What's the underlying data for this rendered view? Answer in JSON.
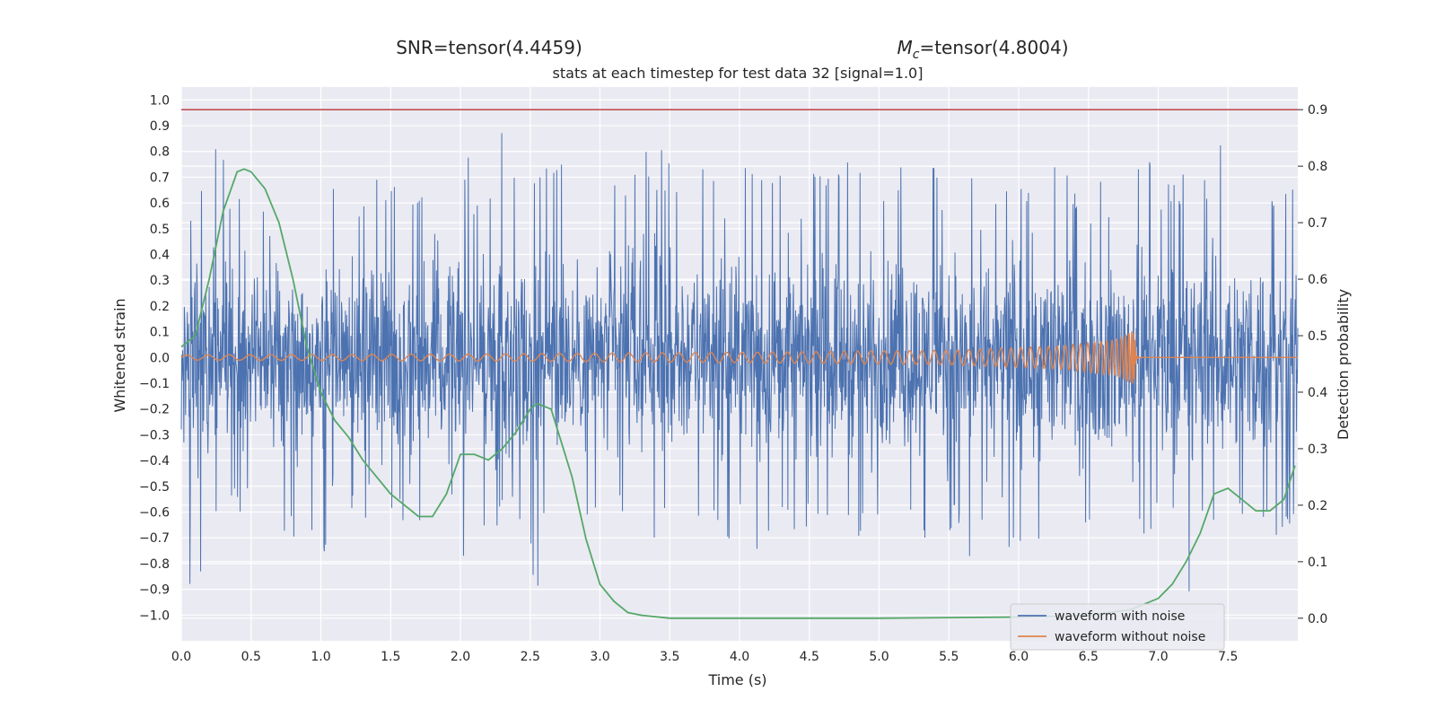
{
  "header": {
    "snr_text": "SNR=tensor(4.4459)",
    "mc_symbol": "M",
    "mc_subscript": "c",
    "mc_value": "=tensor(4.8004)"
  },
  "colors": {
    "noise": "#4c72b0",
    "clean": "#dd8452",
    "probability": "#55a868",
    "threshold": "#c44e52",
    "background": "#eaeaf2"
  },
  "chart_data": {
    "type": "line",
    "title": "stats at each timestep for test data 32 [signal=1.0]",
    "xlabel": "Time (s)",
    "ylabel_left": "Whitened strain",
    "ylabel_right": "Detection probability",
    "xlim": [
      0,
      8
    ],
    "ylim_left": [
      -1.1,
      1.05
    ],
    "ylim_right": [
      -0.04,
      0.94
    ],
    "grid": true,
    "legend_position": "lower-right",
    "x_ticks": [
      "0.0",
      "0.5",
      "1.0",
      "1.5",
      "2.0",
      "2.5",
      "3.0",
      "3.5",
      "4.0",
      "4.5",
      "5.0",
      "5.5",
      "6.0",
      "6.5",
      "7.0",
      "7.5"
    ],
    "y_left_ticks": [
      "1.0",
      "0.9",
      "0.8",
      "0.7",
      "0.6",
      "0.5",
      "0.4",
      "0.3",
      "0.2",
      "0.1",
      "0.0",
      "−0.1",
      "−0.2",
      "−0.3",
      "−0.4",
      "−0.5",
      "−0.6",
      "−0.7",
      "−0.8",
      "−0.9",
      "−1.0"
    ],
    "y_right_ticks": [
      "0.9",
      "0.8",
      "0.7",
      "0.6",
      "0.5",
      "0.4",
      "0.3",
      "0.2",
      "0.1",
      "0.0"
    ],
    "threshold": 0.9,
    "series": [
      {
        "name": "waveform with noise",
        "axis": "left",
        "envelope_max": [
          0.52,
          0.62,
          0.7,
          0.55,
          0.91,
          0.7,
          0.78,
          0.62,
          0.68,
          0.45,
          0.55,
          0.62,
          0.52,
          0.58,
          0.56,
          0.6,
          0.75,
          0.68,
          0.7,
          0.62,
          0.65,
          0.8,
          0.72,
          0.58,
          0.7,
          0.6,
          0.65,
          0.72,
          0.7,
          0.62,
          0.75,
          0.55,
          0.7,
          0.6,
          0.65,
          0.62,
          0.72,
          0.78,
          0.65,
          0.7,
          0.75,
          0.8,
          0.62,
          0.85,
          0.66,
          0.72,
          0.92,
          0.7,
          0.75,
          0.8,
          0.68,
          0.7,
          0.76,
          0.73,
          0.8,
          0.78,
          0.72,
          0.75,
          0.68,
          0.72,
          0.76,
          0.72,
          0.78,
          0.75,
          0.7,
          0.78,
          0.82,
          0.8,
          0.72,
          0.85,
          0.76,
          0.7,
          0.75,
          0.72,
          0.68,
          0.82,
          0.8,
          0.7,
          0.91,
          0.8,
          0.75,
          0.78,
          0.72,
          0.7,
          0.75,
          0.75,
          0.72,
          0.7,
          0.8,
          0.78,
          0.75,
          0.72,
          0.72,
          0.72,
          0.72,
          0.72,
          0.8,
          0.78,
          0.75,
          0.72,
          0.7,
          0.7,
          0.66,
          0.75,
          0.8,
          0.7,
          0.75,
          0.65,
          0.78,
          0.8,
          0.65,
          0.72,
          0.9,
          0.6,
          0.7,
          0.7,
          0.65,
          0.72,
          0.62,
          0.68,
          0.8,
          0.72,
          0.68,
          0.78,
          0.6,
          0.82,
          0.75,
          0.7,
          0.72,
          0.68,
          0.65,
          0.6,
          0.72,
          0.75,
          0.55,
          0.8,
          0.7,
          0.72,
          0.75,
          0.72,
          0.78,
          0.62,
          0.6,
          0.7,
          0.65,
          0.72,
          0.72,
          0.7,
          0.7,
          0.78,
          0.85,
          0.7,
          0.75,
          0.72,
          0.78,
          0.8,
          0.75,
          0.6,
          0.62,
          0.8,
          0.72,
          0.7
        ],
        "envelope_min": [
          -0.62,
          -0.9,
          -0.88,
          -0.72,
          -0.6,
          -0.65,
          -0.75,
          -0.55,
          -0.6,
          -0.58,
          -0.7,
          -0.55,
          -0.65,
          -0.58,
          -0.7,
          -0.62,
          -0.75,
          -0.55,
          -0.68,
          -0.6,
          -0.8,
          -0.52,
          -0.6,
          -0.58,
          -0.62,
          -0.55,
          -0.7,
          -0.52,
          -0.6,
          -0.88,
          -0.65,
          -0.6,
          -0.72,
          -0.55,
          -0.68,
          -0.6,
          -0.7,
          -0.58,
          -0.65,
          -0.6,
          -0.88,
          -0.62,
          -0.55,
          -0.68,
          -0.6,
          -0.72,
          -0.6,
          -0.64,
          -0.6,
          -0.67,
          -0.8,
          -0.9,
          -0.65,
          -0.7,
          -0.62,
          -0.72,
          -0.65,
          -0.7,
          -0.7,
          -0.6,
          -0.65,
          -0.7,
          -0.99,
          -0.62,
          -0.7,
          -0.6,
          -0.65,
          -0.62,
          -0.75,
          -0.68,
          -0.66,
          -0.65,
          -0.7,
          -0.66,
          -0.72,
          -0.66,
          -0.6,
          -0.68,
          -0.7,
          -0.8,
          -0.62,
          -0.66,
          -0.7,
          -0.78,
          -0.66,
          -0.72,
          -0.6,
          -0.65,
          -0.75,
          -0.7,
          -0.66,
          -0.65,
          -0.7,
          -0.62,
          -0.75,
          -0.66,
          -0.7,
          -0.68,
          -0.7,
          -0.72,
          -0.8,
          -0.7,
          -0.65,
          -0.68,
          -0.7,
          -0.66,
          -0.65,
          -0.72,
          -0.6,
          -0.64,
          -0.8,
          -0.7,
          -0.66,
          -0.7,
          -0.8,
          -0.62,
          -0.7,
          -0.75,
          -0.7,
          -0.6,
          -0.78,
          -0.8,
          -0.7,
          -0.75,
          -0.82,
          -0.72,
          -0.9,
          -0.66,
          -0.7,
          -0.72,
          -0.8,
          -0.7,
          -0.66,
          -0.72,
          -0.75,
          -0.8,
          -0.7,
          -0.72,
          -0.88,
          -0.7,
          -0.7,
          -0.62,
          -0.75,
          -0.66,
          -0.7,
          -0.72,
          -0.98,
          -0.7,
          -0.66,
          -0.72,
          -0.8,
          -0.7,
          -0.6,
          -0.66,
          -0.7,
          -0.72,
          -0.68,
          -0.62,
          -0.72,
          -0.66,
          -0.7,
          -0.66
        ]
      },
      {
        "name": "waveform without noise",
        "axis": "left",
        "amplitude_t": [
          0.0,
          2.0,
          4.0,
          5.5,
          6.3,
          6.7,
          6.83
        ],
        "amplitude": [
          0.01,
          0.013,
          0.02,
          0.028,
          0.045,
          0.07,
          0.11
        ],
        "merger_time": 6.83,
        "ringdown_end": 6.86
      },
      {
        "name": "Detection probability",
        "axis": "right",
        "x": [
          0.0,
          0.1,
          0.2,
          0.3,
          0.4,
          0.45,
          0.5,
          0.6,
          0.7,
          0.8,
          0.9,
          1.0,
          1.1,
          1.2,
          1.3,
          1.4,
          1.5,
          1.6,
          1.7,
          1.8,
          1.9,
          2.0,
          2.1,
          2.2,
          2.3,
          2.4,
          2.5,
          2.55,
          2.65,
          2.7,
          2.8,
          2.9,
          3.0,
          3.1,
          3.2,
          3.3,
          3.5,
          4.0,
          5.0,
          6.0,
          6.5,
          6.8,
          7.0,
          7.1,
          7.2,
          7.3,
          7.4,
          7.5,
          7.6,
          7.7,
          7.8,
          7.9,
          7.98
        ],
        "y": [
          0.48,
          0.5,
          0.6,
          0.72,
          0.79,
          0.795,
          0.79,
          0.76,
          0.7,
          0.6,
          0.48,
          0.4,
          0.35,
          0.32,
          0.28,
          0.25,
          0.22,
          0.2,
          0.18,
          0.18,
          0.22,
          0.29,
          0.29,
          0.28,
          0.3,
          0.33,
          0.37,
          0.38,
          0.37,
          0.33,
          0.25,
          0.14,
          0.06,
          0.03,
          0.01,
          0.005,
          0.0,
          0.0,
          0.0,
          0.002,
          0.005,
          0.015,
          0.035,
          0.06,
          0.1,
          0.15,
          0.22,
          0.23,
          0.21,
          0.19,
          0.19,
          0.21,
          0.27
        ]
      }
    ]
  }
}
